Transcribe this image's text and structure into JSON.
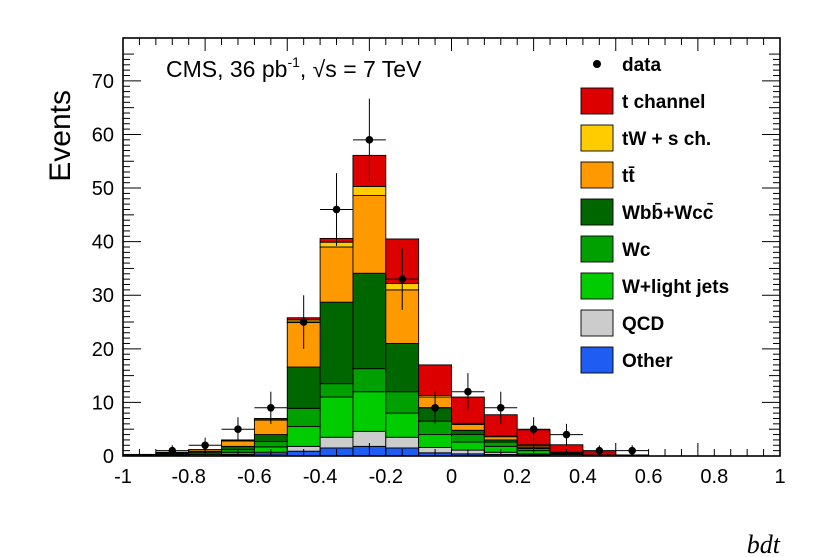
{
  "chart_data": {
    "type": "bar",
    "stacked": true,
    "title": "CMS, 36 pb",
    "title_sup": "-1",
    "title_energy": ", √s = 7 TeV",
    "xlabel": "bdt",
    "ylabel": "Events",
    "xlim": [
      -1,
      1
    ],
    "ylim": [
      0,
      78
    ],
    "x_ticks": [
      -1,
      -0.8,
      -0.6,
      -0.4,
      -0.2,
      0,
      0.2,
      0.4,
      0.6,
      0.8,
      1
    ],
    "x_tick_labels": [
      "-1",
      "-0.8",
      "-0.6",
      "-0.4",
      "-0.2",
      "0",
      "0.2",
      "0.4",
      "0.6",
      "0.8",
      "1"
    ],
    "y_ticks": [
      0,
      10,
      20,
      30,
      40,
      50,
      60,
      70
    ],
    "y_tick_labels": [
      "0",
      "10",
      "20",
      "30",
      "40",
      "50",
      "60",
      "70"
    ],
    "bin_edges": [
      -1,
      -0.9,
      -0.8,
      -0.7,
      -0.6,
      -0.5,
      -0.4,
      -0.3,
      -0.2,
      -0.1,
      0,
      0.1,
      0.2,
      0.3,
      0.4,
      0.5,
      0.6,
      0.7,
      0.8,
      0.9,
      1
    ],
    "series": [
      {
        "name": "Other",
        "color": "#1f5cf2",
        "values": [
          0,
          0,
          0,
          0.2,
          0.4,
          0.9,
          1.5,
          1.8,
          1.5,
          0.6,
          0.4,
          0.3,
          0.2,
          0,
          0,
          0,
          0,
          0,
          0,
          0
        ]
      },
      {
        "name": "QCD",
        "color": "#cccccc",
        "values": [
          0,
          0,
          0,
          0.1,
          0.3,
          0.9,
          2.0,
          2.8,
          2.0,
          1.0,
          0.7,
          0.4,
          0.2,
          0,
          0,
          0,
          0,
          0,
          0,
          0
        ]
      },
      {
        "name": "W+light jets",
        "color": "#00cc00",
        "values": [
          0.1,
          0.2,
          0.3,
          0.4,
          1.0,
          3.7,
          7.5,
          7.4,
          4.5,
          2.4,
          1.5,
          1.1,
          0.6,
          0.3,
          0.1,
          0,
          0,
          0,
          0,
          0
        ]
      },
      {
        "name": "Wc",
        "color": "#00a000",
        "values": [
          0.1,
          0.2,
          0.3,
          0.5,
          1.0,
          3.4,
          2.5,
          4.3,
          4.0,
          2.5,
          1.4,
          0.8,
          0.4,
          0.2,
          0.1,
          0,
          0,
          0,
          0,
          0
        ]
      },
      {
        "name": "Wbb̄+Wcc̄",
        "color": "#006600",
        "values": [
          0.1,
          0.2,
          0.3,
          0.6,
          1.3,
          7.7,
          15.2,
          17.8,
          9.0,
          2.5,
          0.8,
          0.4,
          0.3,
          0.1,
          0,
          0,
          0,
          0,
          0,
          0
        ]
      },
      {
        "name": "tt̄",
        "color": "#ff9900",
        "values": [
          0,
          0.1,
          0.3,
          1.0,
          2.7,
          8.3,
          10.3,
          14.5,
          10.0,
          2.0,
          1.1,
          0.6,
          0.3,
          0.1,
          0,
          0,
          0,
          0,
          0,
          0
        ]
      },
      {
        "name": "tW + s ch.",
        "color": "#ffcc00",
        "values": [
          0,
          0,
          0,
          0.1,
          0.2,
          0.5,
          0.9,
          1.7,
          1.2,
          0.3,
          0.2,
          0.1,
          0.1,
          0,
          0,
          0,
          0,
          0,
          0,
          0
        ]
      },
      {
        "name": "t channel",
        "color": "#dd0000",
        "values": [
          0,
          0,
          0,
          0.1,
          0.1,
          0.4,
          0.7,
          5.8,
          8.3,
          5.7,
          4.9,
          4.0,
          2.8,
          1.4,
          0.6,
          0.2,
          0,
          0,
          0,
          0
        ]
      }
    ],
    "data_points": {
      "name": "data",
      "x": [
        -0.85,
        -0.75,
        -0.65,
        -0.55,
        -0.45,
        -0.35,
        -0.25,
        -0.15,
        -0.05,
        0.05,
        0.15,
        0.25,
        0.35,
        0.45,
        0.55
      ],
      "y": [
        1,
        2,
        5,
        9,
        25,
        46,
        59,
        33,
        9,
        12,
        9,
        5,
        4,
        1,
        1
      ]
    },
    "legend": {
      "position": "top-right",
      "entries": [
        "data",
        "t channel",
        "tW + s ch.",
        "tt̄",
        "Wbb̄+Wcc̄",
        "Wc",
        "W+light jets",
        "QCD",
        "Other"
      ]
    }
  }
}
